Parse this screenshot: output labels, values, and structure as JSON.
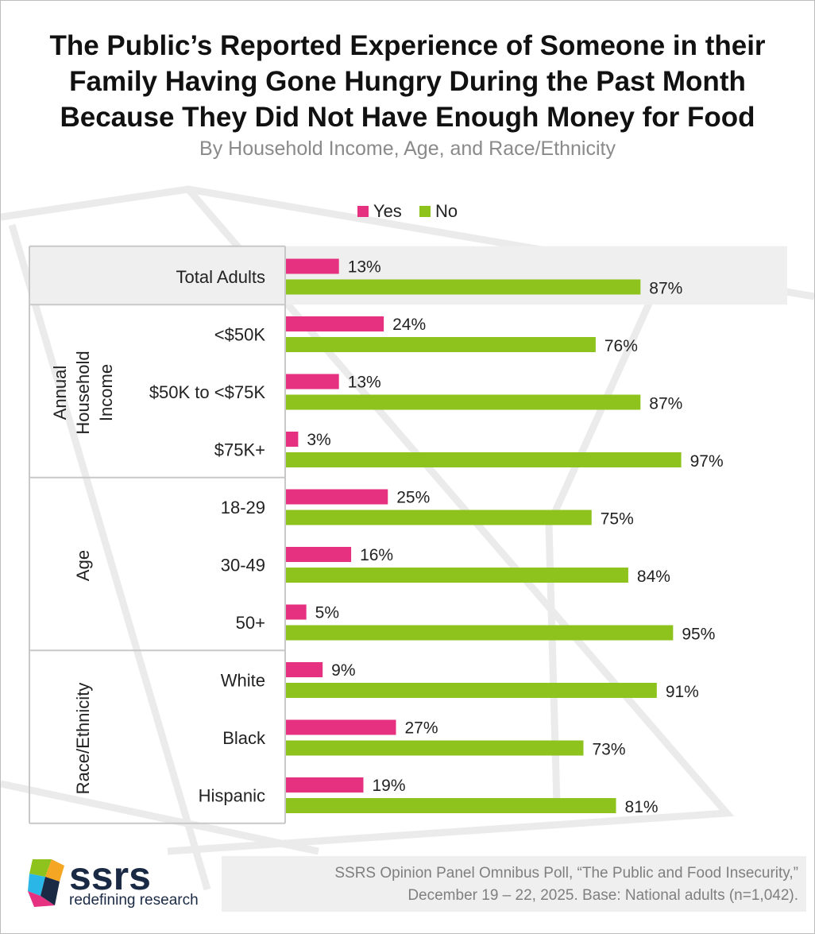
{
  "chart_data": {
    "type": "bar",
    "orientation": "horizontal",
    "title": [
      "The Public’s Reported Experience of Someone in their",
      "Family Having Gone Hungry During the Past Month",
      "Because They Did Not Have Enough Money for Food"
    ],
    "subtitle": "By Household Income, Age, and Race/Ethnicity",
    "legend_position": "top",
    "grid": false,
    "xlim": [
      0,
      100
    ],
    "unit": "%",
    "series": [
      {
        "name": "Yes",
        "color": "#e5317f"
      },
      {
        "name": "No",
        "color": "#8dc31c"
      }
    ],
    "groups": [
      {
        "label": "",
        "highlight": true,
        "rows": [
          {
            "label": "Total Adults",
            "yes": 13,
            "no": 87
          }
        ]
      },
      {
        "label_lines": [
          "Annual",
          "Household",
          "Income"
        ],
        "highlight": false,
        "rows": [
          {
            "label": "<$50K",
            "yes": 24,
            "no": 76
          },
          {
            "label": "$50K to <$75K",
            "yes": 13,
            "no": 87
          },
          {
            "label": "$75K+",
            "yes": 3,
            "no": 97
          }
        ]
      },
      {
        "label_lines": [
          "Age"
        ],
        "highlight": false,
        "rows": [
          {
            "label": "18-29",
            "yes": 25,
            "no": 75
          },
          {
            "label": "30-49",
            "yes": 16,
            "no": 84
          },
          {
            "label": "50+",
            "yes": 5,
            "no": 95
          }
        ]
      },
      {
        "label_lines": [
          "Race/Ethnicity"
        ],
        "highlight": false,
        "rows": [
          {
            "label": "White",
            "yes": 9,
            "no": 91
          },
          {
            "label": "Black",
            "yes": 27,
            "no": 73
          },
          {
            "label": "Hispanic",
            "yes": 19,
            "no": 81
          }
        ]
      }
    ]
  },
  "logo": {
    "wordmark": "ssrs",
    "tagline": "redefining research",
    "colors": [
      "#2ab7e8",
      "#e5317f",
      "#8dc31c",
      "#f5a623",
      "#1b2a44"
    ]
  },
  "source": {
    "lines": [
      "SSRS Opinion Panel Omnibus Poll, “The Public and Food Insecurity,”",
      "December 19 – 22, 2025. Base: National adults (n=1,042)."
    ]
  }
}
